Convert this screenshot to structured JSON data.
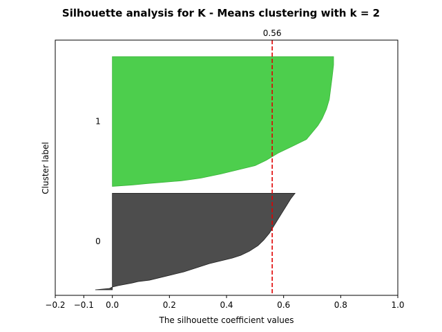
{
  "chart_data": {
    "type": "area",
    "title": "Silhouette analysis for K - Means clustering with k = 2",
    "xlabel": "The silhouette coefficient values",
    "ylabel": "Cluster label",
    "xlim": [
      -0.2,
      1.0
    ],
    "ylim": [
      0,
      185
    ],
    "xticks": [
      -0.2,
      -0.1,
      0.0,
      0.2,
      0.4,
      0.6,
      0.8,
      1.0
    ],
    "xtick_labels": [
      "−0.2",
      "−0.1",
      "0.0",
      "0.2",
      "0.4",
      "0.6",
      "0.8",
      "1.0"
    ],
    "grid": false,
    "average_silhouette": {
      "value": 0.56,
      "label": "0.56",
      "color": "#e00000"
    },
    "clusters": [
      {
        "label": "0",
        "color": "#4d4d4d",
        "edge_color": "#222222",
        "profile": [
          [
            4,
            -0.06
          ],
          [
            5,
            -0.01
          ],
          [
            6,
            0.0
          ],
          [
            7,
            0.02
          ],
          [
            9,
            0.07
          ],
          [
            10,
            0.09
          ],
          [
            11,
            0.13
          ],
          [
            13,
            0.17
          ],
          [
            15,
            0.21
          ],
          [
            17,
            0.25
          ],
          [
            19,
            0.28
          ],
          [
            21,
            0.31
          ],
          [
            23,
            0.34
          ],
          [
            25,
            0.38
          ],
          [
            27,
            0.42
          ],
          [
            29,
            0.45
          ],
          [
            32,
            0.48
          ],
          [
            36,
            0.51
          ],
          [
            40,
            0.53
          ],
          [
            45,
            0.55
          ],
          [
            50,
            0.565
          ],
          [
            55,
            0.58
          ],
          [
            60,
            0.595
          ],
          [
            65,
            0.61
          ],
          [
            70,
            0.625
          ],
          [
            74,
            0.64
          ]
        ]
      },
      {
        "label": "1",
        "color": "#4dce4d",
        "edge_color": "#3ab53a",
        "profile": [
          [
            79,
            0.0
          ],
          [
            80,
            0.07
          ],
          [
            81,
            0.12
          ],
          [
            82,
            0.18
          ],
          [
            83,
            0.24
          ],
          [
            85,
            0.31
          ],
          [
            88,
            0.38
          ],
          [
            91,
            0.44
          ],
          [
            94,
            0.5
          ],
          [
            98,
            0.54
          ],
          [
            103,
            0.58
          ],
          [
            108,
            0.63
          ],
          [
            113,
            0.68
          ],
          [
            118,
            0.7
          ],
          [
            123,
            0.72
          ],
          [
            128,
            0.735
          ],
          [
            135,
            0.75
          ],
          [
            142,
            0.76
          ],
          [
            150,
            0.765
          ],
          [
            158,
            0.77
          ],
          [
            167,
            0.775
          ],
          [
            173,
            0.775
          ]
        ]
      }
    ]
  }
}
